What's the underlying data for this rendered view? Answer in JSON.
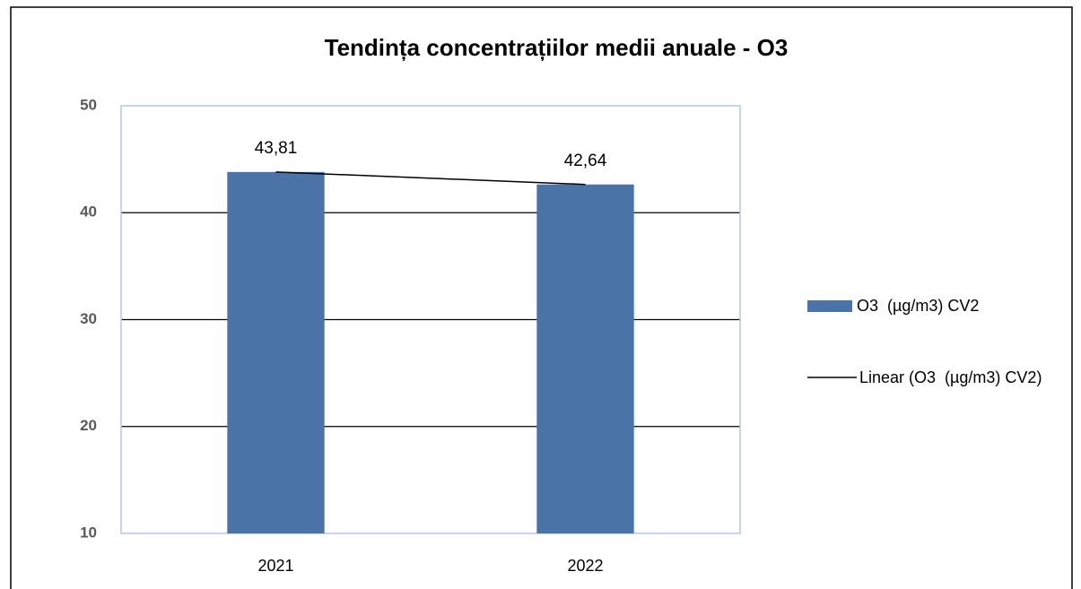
{
  "chart_data": {
    "type": "bar",
    "title": "Tendința concentrațiilor medii anuale - O3",
    "categories": [
      "2021",
      "2022"
    ],
    "series": [
      {
        "name": "O3  (µg/m3) CV2",
        "color": "#4a74a8",
        "values": [
          43.81,
          42.64
        ],
        "value_labels": [
          "43,81",
          "42,64"
        ]
      }
    ],
    "trendline": {
      "name": "Linear (O3  (µg/m3) CV2)",
      "type": "linear",
      "color": "#000000"
    },
    "ylim": [
      10,
      50
    ],
    "yticks": [
      10,
      20,
      30,
      40,
      50
    ],
    "grid": true,
    "legend": "right"
  }
}
